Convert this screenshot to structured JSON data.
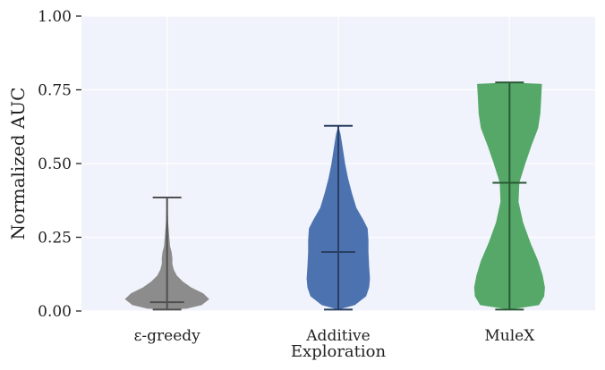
{
  "chart_data": {
    "type": "violin",
    "title": "",
    "xlabel": "Exploration",
    "ylabel": "Normalized AUC",
    "ylim": [
      0,
      1
    ],
    "yticks": [
      0,
      0.25,
      0.5,
      0.75,
      1.0
    ],
    "ytick_labels": [
      "0.00",
      "0.25",
      "0.50",
      "0.75",
      "1.00"
    ],
    "grid": true,
    "categories": [
      "ε-greedy",
      "Additive",
      "MuleX"
    ],
    "series": [
      {
        "category": "ε-greedy",
        "color": "#8c8c8c",
        "edge_color": "#505050",
        "min": 0.005,
        "max": 0.385,
        "median": 0.03,
        "density": [
          [
            0.005,
            0.0
          ],
          [
            0.008,
            0.26
          ],
          [
            0.02,
            0.46
          ],
          [
            0.04,
            0.56
          ],
          [
            0.06,
            0.48
          ],
          [
            0.08,
            0.32
          ],
          [
            0.1,
            0.21
          ],
          [
            0.12,
            0.13
          ],
          [
            0.14,
            0.09
          ],
          [
            0.16,
            0.07
          ],
          [
            0.18,
            0.07
          ],
          [
            0.2,
            0.06
          ],
          [
            0.22,
            0.04
          ],
          [
            0.25,
            0.03
          ],
          [
            0.3,
            0.015
          ],
          [
            0.35,
            0.007
          ],
          [
            0.385,
            0.0
          ]
        ]
      },
      {
        "category": "Additive",
        "color": "#4c72b0",
        "edge_color": "#2a3f63",
        "min": 0.005,
        "max": 0.628,
        "median": 0.2,
        "density": [
          [
            0.005,
            0.0
          ],
          [
            0.02,
            0.22
          ],
          [
            0.05,
            0.37
          ],
          [
            0.08,
            0.41
          ],
          [
            0.11,
            0.42
          ],
          [
            0.15,
            0.41
          ],
          [
            0.2,
            0.4
          ],
          [
            0.24,
            0.4
          ],
          [
            0.28,
            0.39
          ],
          [
            0.31,
            0.33
          ],
          [
            0.35,
            0.24
          ],
          [
            0.4,
            0.18
          ],
          [
            0.45,
            0.13
          ],
          [
            0.5,
            0.09
          ],
          [
            0.55,
            0.06
          ],
          [
            0.6,
            0.03
          ],
          [
            0.628,
            0.0
          ]
        ]
      },
      {
        "category": "MuleX",
        "color": "#55a868",
        "edge_color": "#2a5a35",
        "min": 0.005,
        "max": 0.775,
        "median": 0.435,
        "density": [
          [
            0.005,
            0.0
          ],
          [
            0.02,
            0.39
          ],
          [
            0.05,
            0.46
          ],
          [
            0.08,
            0.47
          ],
          [
            0.12,
            0.44
          ],
          [
            0.17,
            0.38
          ],
          [
            0.23,
            0.28
          ],
          [
            0.3,
            0.18
          ],
          [
            0.37,
            0.12
          ],
          [
            0.435,
            0.13
          ],
          [
            0.5,
            0.21
          ],
          [
            0.56,
            0.29
          ],
          [
            0.62,
            0.38
          ],
          [
            0.67,
            0.41
          ],
          [
            0.72,
            0.42
          ],
          [
            0.77,
            0.43
          ],
          [
            0.775,
            0.0
          ]
        ]
      }
    ]
  }
}
